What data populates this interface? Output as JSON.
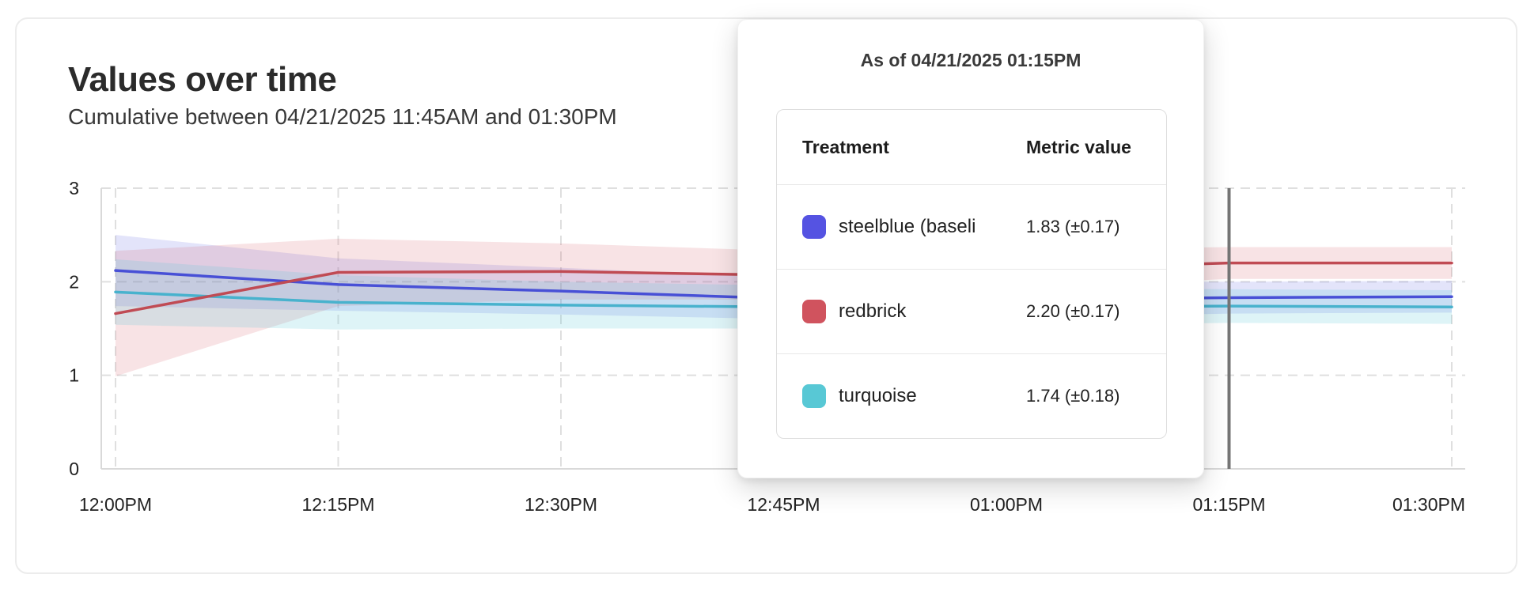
{
  "card": {
    "title": "Values over time",
    "subtitle": "Cumulative between 04/21/2025 11:45AM and 01:30PM"
  },
  "tooltip": {
    "title": "As of 04/21/2025 01:15PM",
    "columns": [
      "Treatment",
      "Metric value"
    ],
    "rows": [
      {
        "label": "steelblue  (baseli",
        "value": "1.83 (±0.17)",
        "swatch_color": "#5553e2"
      },
      {
        "label": "redbrick",
        "value": "2.20 (±0.17)",
        "swatch_color": "#d0535e"
      },
      {
        "label": "turquoise",
        "value": "1.74 (±0.18)",
        "swatch_color": "#58c8d5"
      }
    ]
  },
  "chart_data": {
    "type": "line",
    "title": "Values over time",
    "subtitle": "Cumulative between 04/21/2025 11:45AM and 01:30PM",
    "xlabel": "",
    "ylabel": "",
    "x_tick_labels": [
      "12:00PM",
      "12:15PM",
      "12:30PM",
      "12:45PM",
      "01:00PM",
      "01:15PM",
      "01:30PM"
    ],
    "y_ticks": [
      0,
      1,
      2,
      3
    ],
    "ylim": [
      0,
      3
    ],
    "grid": "dashed",
    "legend_position": "none",
    "hover": {
      "index": 5,
      "label": "01:15PM",
      "line_color": "#757575"
    },
    "axis_color": "#d9d9d9",
    "grid_color": "#dfdfdf",
    "tick_label_color": "#222222",
    "series": [
      {
        "name": "steelblue (baseline)",
        "color": "#4850d6",
        "band_color": "rgba(101,106,228,0.18)",
        "values": [
          2.12,
          1.97,
          1.9,
          1.82,
          1.81,
          1.83,
          1.84
        ],
        "band_half": [
          0.38,
          0.28,
          0.25,
          0.22,
          0.2,
          0.17,
          0.17
        ]
      },
      {
        "name": "redbrick",
        "color": "#c04b54",
        "band_color": "rgba(214,88,98,0.17)",
        "values": [
          1.66,
          2.1,
          2.11,
          2.07,
          2.13,
          2.2,
          2.2
        ],
        "band_half": [
          0.67,
          0.36,
          0.3,
          0.26,
          0.21,
          0.17,
          0.17
        ]
      },
      {
        "name": "turquoise",
        "color": "#48b2cd",
        "band_color": "rgba(88,200,213,0.20)",
        "values": [
          1.89,
          1.78,
          1.75,
          1.73,
          1.73,
          1.74,
          1.73
        ],
        "band_half": [
          0.35,
          0.29,
          0.25,
          0.23,
          0.2,
          0.18,
          0.18
        ]
      }
    ]
  }
}
